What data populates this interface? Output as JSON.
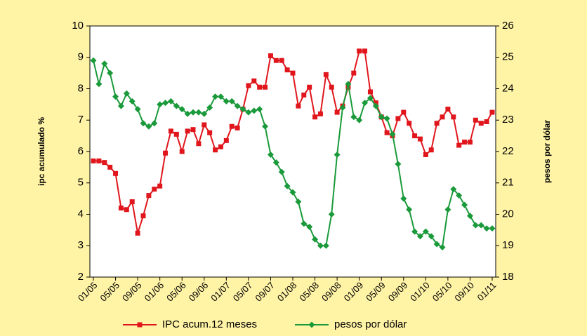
{
  "chart_data": {
    "type": "line",
    "y_label": "ipc acumulado %",
    "y2_label": "pesos por dólar",
    "categories": [
      "01/05",
      null,
      null,
      null,
      "05/05",
      null,
      null,
      null,
      "09/05",
      null,
      null,
      null,
      "01/06",
      null,
      null,
      null,
      "05/06",
      null,
      null,
      null,
      "09/06",
      null,
      null,
      null,
      "01/07",
      null,
      null,
      null,
      "05/07",
      null,
      null,
      null,
      "09/07",
      null,
      null,
      null,
      "01/08",
      null,
      null,
      null,
      "05/08",
      null,
      null,
      null,
      "09/08",
      null,
      null,
      null,
      "01/09",
      null,
      null,
      null,
      "05/09",
      null,
      null,
      null,
      "09/09",
      null,
      null,
      null,
      "01/10",
      null,
      null,
      null,
      "05/10",
      null,
      null,
      null,
      "09/10",
      null,
      null,
      null,
      "01/11"
    ],
    "series": [
      {
        "name": "IPC acum.12 meses",
        "color": "#e0161c",
        "marker": "square",
        "axis": "y",
        "values": [
          5.7,
          5.7,
          5.65,
          5.5,
          5.3,
          4.2,
          4.15,
          4.4,
          3.4,
          3.95,
          4.6,
          4.8,
          4.9,
          5.95,
          6.65,
          6.55,
          6.0,
          6.65,
          6.7,
          6.25,
          6.85,
          6.6,
          6.05,
          6.15,
          6.35,
          6.8,
          6.75,
          7.35,
          8.1,
          8.25,
          8.05,
          8.05,
          9.05,
          8.9,
          8.9,
          8.6,
          8.5,
          7.45,
          7.8,
          8.05,
          7.1,
          7.2,
          8.45,
          8.05,
          7.25,
          7.45,
          8.05,
          8.5,
          9.2,
          9.2,
          7.9,
          7.55,
          7.1,
          6.6,
          6.5,
          7.05,
          7.25,
          6.9,
          6.5,
          6.4,
          5.9,
          6.05,
          6.9,
          7.1,
          7.35,
          7.1,
          6.2,
          6.3,
          6.3,
          7.0,
          6.9,
          6.95,
          7.25
        ]
      },
      {
        "name": "pesos por dólar",
        "color": "#1a9a3a",
        "marker": "diamond",
        "axis": "y2",
        "values": [
          24.9,
          24.15,
          24.8,
          24.5,
          23.75,
          23.45,
          23.85,
          23.6,
          23.35,
          22.9,
          22.8,
          22.9,
          23.5,
          23.55,
          23.6,
          23.45,
          23.35,
          23.2,
          23.25,
          23.25,
          23.2,
          23.4,
          23.75,
          23.75,
          23.6,
          23.6,
          23.45,
          23.35,
          23.25,
          23.3,
          23.35,
          22.8,
          21.9,
          21.65,
          21.35,
          20.9,
          20.7,
          20.4,
          19.7,
          19.6,
          19.2,
          19.0,
          19.0,
          20.0,
          21.9,
          23.4,
          24.15,
          23.1,
          23.0,
          23.55,
          23.7,
          23.45,
          23.1,
          23.05,
          22.55,
          21.6,
          20.5,
          20.15,
          19.45,
          19.3,
          19.45,
          19.3,
          19.05,
          18.95,
          20.15,
          20.8,
          20.6,
          20.3,
          19.95,
          19.65,
          19.65,
          19.55,
          19.55
        ]
      }
    ],
    "ylim": [
      2,
      10
    ],
    "yticks": [
      2,
      3,
      4,
      5,
      6,
      7,
      8,
      9,
      10
    ],
    "y2lim": [
      18,
      26
    ],
    "y2ticks": [
      18,
      19,
      20,
      21,
      22,
      23,
      24,
      25,
      26
    ],
    "grid": false,
    "legend": "bottom"
  }
}
